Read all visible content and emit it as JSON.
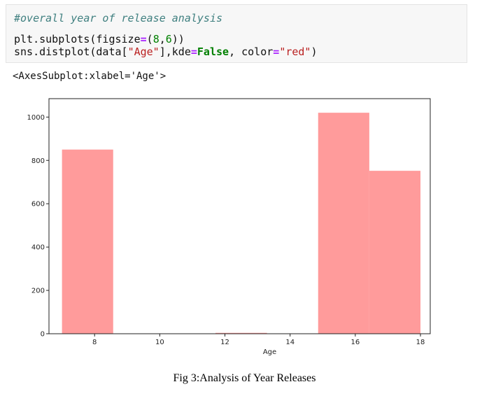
{
  "code_cell": {
    "comment": "#overall year of release analysis",
    "line1": {
      "fn": "plt.subplots(figsize",
      "eq": "=",
      "open": "(",
      "a": "8",
      "comma": ",",
      "b": "6",
      "close": "))"
    },
    "line2": {
      "pre": "sns.distplot(data[",
      "str1": "\"Age\"",
      "mid": "],kde",
      "eq1": "=",
      "kw": "False",
      "sep": ", color",
      "eq2": "=",
      "str2": "\"red\"",
      "end": ")"
    }
  },
  "output": {
    "text": "<AxesSubplot:xlabel='Age'>"
  },
  "chart_data": {
    "type": "bar",
    "xlabel": "Age",
    "ylabel": "",
    "xlim": [
      6.6,
      18.3
    ],
    "ylim": [
      0,
      1085
    ],
    "xticks": [
      8,
      10,
      12,
      14,
      16,
      18
    ],
    "yticks": [
      0,
      200,
      400,
      600,
      800,
      1000
    ],
    "bins": [
      {
        "start": 7.0,
        "end": 8.57,
        "value": 850
      },
      {
        "start": 8.57,
        "end": 10.14,
        "value": 0
      },
      {
        "start": 10.14,
        "end": 11.71,
        "value": 0
      },
      {
        "start": 11.71,
        "end": 13.29,
        "value": 4
      },
      {
        "start": 13.29,
        "end": 14.86,
        "value": 0
      },
      {
        "start": 14.86,
        "end": 16.43,
        "value": 1020
      },
      {
        "start": 16.43,
        "end": 18.0,
        "value": 752
      }
    ],
    "color": "#ff9b9b",
    "grid": false
  },
  "caption": "Fig 3:Analysis of Year Releases"
}
